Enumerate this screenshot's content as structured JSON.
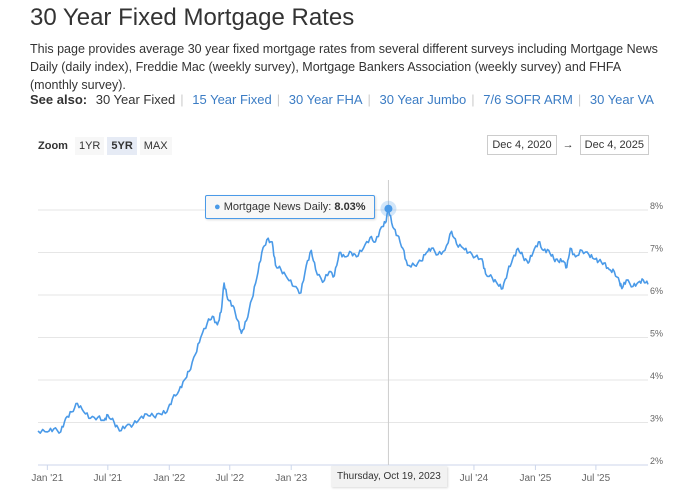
{
  "page": {
    "title": "30 Year Fixed Mortgage Rates",
    "description": "This page provides average 30 year fixed mortgage rates from several different surveys including Mortgage News Daily (daily index), Freddie Mac (weekly survey), Mortgage Bankers Association (weekly survey) and FHFA (monthly survey)."
  },
  "see_also": {
    "label": "See also:",
    "items": [
      "30 Year Fixed",
      "15 Year Fixed",
      "30 Year FHA",
      "30 Year Jumbo",
      "7/6 SOFR ARM",
      "30 Year VA"
    ]
  },
  "zoom": {
    "label": "Zoom",
    "options": [
      "1YR",
      "5YR",
      "MAX"
    ],
    "active": "5YR"
  },
  "range": {
    "from": "Dec 4, 2020",
    "arrow": "→",
    "to": "Dec 4, 2025"
  },
  "tooltip": {
    "series": "Mortgage News Daily",
    "value": "8.03%",
    "date": "Thursday, Oct 19, 2023"
  },
  "chart_data": {
    "type": "line",
    "title": "",
    "xlabel": "",
    "ylabel": "",
    "xlim": [
      "2020-12-04",
      "2025-12-04"
    ],
    "ylim": [
      2,
      8.3
    ],
    "grid": true,
    "color": "#4a9ae8",
    "x_ticks": [
      "Jan '21",
      "Jul '21",
      "Jan '22",
      "Jul '22",
      "Jan '23",
      "Jul '24",
      "Jan '25",
      "Jul '25"
    ],
    "x_tick_dates": [
      "2021-01-01",
      "2021-07-01",
      "2022-01-01",
      "2022-07-01",
      "2023-01-01",
      "2024-07-01",
      "2025-01-01",
      "2025-07-01"
    ],
    "y_ticks": [
      "2%",
      "3%",
      "4%",
      "5%",
      "6%",
      "7%",
      "8%"
    ],
    "y_tick_values": [
      2,
      3,
      4,
      5,
      6,
      7,
      8
    ],
    "series": [
      {
        "name": "Mortgage News Daily",
        "points": [
          [
            "2020-12-04",
            2.8
          ],
          [
            "2021-01-01",
            2.78
          ],
          [
            "2021-01-20",
            2.85
          ],
          [
            "2021-02-10",
            2.78
          ],
          [
            "2021-02-25",
            3.1
          ],
          [
            "2021-03-15",
            3.25
          ],
          [
            "2021-04-01",
            3.45
          ],
          [
            "2021-04-20",
            3.25
          ],
          [
            "2021-05-10",
            3.1
          ],
          [
            "2021-06-01",
            3.12
          ],
          [
            "2021-06-20",
            3.05
          ],
          [
            "2021-07-01",
            3.18
          ],
          [
            "2021-07-20",
            3.0
          ],
          [
            "2021-08-05",
            2.8
          ],
          [
            "2021-08-25",
            2.92
          ],
          [
            "2021-09-15",
            2.95
          ],
          [
            "2021-10-05",
            3.1
          ],
          [
            "2021-10-25",
            3.2
          ],
          [
            "2021-11-15",
            3.15
          ],
          [
            "2021-12-05",
            3.2
          ],
          [
            "2021-12-25",
            3.25
          ],
          [
            "2022-01-10",
            3.55
          ],
          [
            "2022-01-30",
            3.75
          ],
          [
            "2022-02-15",
            4.0
          ],
          [
            "2022-03-01",
            4.2
          ],
          [
            "2022-03-20",
            4.6
          ],
          [
            "2022-04-05",
            5.0
          ],
          [
            "2022-04-25",
            5.35
          ],
          [
            "2022-05-10",
            5.5
          ],
          [
            "2022-05-25",
            5.3
          ],
          [
            "2022-06-05",
            5.6
          ],
          [
            "2022-06-14",
            6.28
          ],
          [
            "2022-06-25",
            5.9
          ],
          [
            "2022-07-10",
            5.75
          ],
          [
            "2022-07-25",
            5.4
          ],
          [
            "2022-08-05",
            5.1
          ],
          [
            "2022-08-20",
            5.4
          ],
          [
            "2022-09-05",
            5.9
          ],
          [
            "2022-09-20",
            6.4
          ],
          [
            "2022-10-05",
            7.0
          ],
          [
            "2022-10-20",
            7.3
          ],
          [
            "2022-11-05",
            7.25
          ],
          [
            "2022-11-15",
            6.7
          ],
          [
            "2022-12-01",
            6.6
          ],
          [
            "2022-12-20",
            6.4
          ],
          [
            "2023-01-10",
            6.2
          ],
          [
            "2023-01-30",
            6.05
          ],
          [
            "2023-02-15",
            6.7
          ],
          [
            "2023-03-02",
            7.05
          ],
          [
            "2023-03-15",
            6.6
          ],
          [
            "2023-04-05",
            6.3
          ],
          [
            "2023-04-25",
            6.55
          ],
          [
            "2023-05-10",
            6.45
          ],
          [
            "2023-05-25",
            7.0
          ],
          [
            "2023-06-10",
            6.9
          ],
          [
            "2023-06-30",
            7.0
          ],
          [
            "2023-07-15",
            6.9
          ],
          [
            "2023-08-05",
            7.1
          ],
          [
            "2023-08-25",
            7.35
          ],
          [
            "2023-09-10",
            7.25
          ],
          [
            "2023-09-28",
            7.6
          ],
          [
            "2023-10-10",
            7.7
          ],
          [
            "2023-10-19",
            8.03
          ],
          [
            "2023-11-01",
            7.6
          ],
          [
            "2023-11-15",
            7.4
          ],
          [
            "2023-12-01",
            7.1
          ],
          [
            "2023-12-15",
            6.7
          ],
          [
            "2024-01-05",
            6.7
          ],
          [
            "2024-01-25",
            6.8
          ],
          [
            "2024-02-10",
            7.0
          ],
          [
            "2024-02-25",
            7.1
          ],
          [
            "2024-03-15",
            6.95
          ],
          [
            "2024-04-05",
            7.05
          ],
          [
            "2024-04-25",
            7.5
          ],
          [
            "2024-05-10",
            7.2
          ],
          [
            "2024-05-30",
            7.1
          ],
          [
            "2024-06-15",
            7.0
          ],
          [
            "2024-07-05",
            6.9
          ],
          [
            "2024-07-25",
            6.85
          ],
          [
            "2024-08-05",
            6.5
          ],
          [
            "2024-08-25",
            6.4
          ],
          [
            "2024-09-10",
            6.25
          ],
          [
            "2024-09-25",
            6.15
          ],
          [
            "2024-10-10",
            6.55
          ],
          [
            "2024-10-25",
            6.85
          ],
          [
            "2024-11-10",
            7.1
          ],
          [
            "2024-11-25",
            6.9
          ],
          [
            "2024-12-10",
            6.75
          ],
          [
            "2024-12-25",
            7.0
          ],
          [
            "2025-01-10",
            7.25
          ],
          [
            "2025-01-25",
            7.05
          ],
          [
            "2025-02-10",
            7.05
          ],
          [
            "2025-02-25",
            6.85
          ],
          [
            "2025-03-10",
            6.8
          ],
          [
            "2025-03-25",
            6.8
          ],
          [
            "2025-04-05",
            6.65
          ],
          [
            "2025-04-15",
            7.1
          ],
          [
            "2025-05-01",
            6.9
          ],
          [
            "2025-05-20",
            7.05
          ],
          [
            "2025-06-10",
            6.95
          ],
          [
            "2025-06-25",
            6.85
          ],
          [
            "2025-07-10",
            6.8
          ],
          [
            "2025-07-25",
            6.75
          ],
          [
            "2025-08-10",
            6.6
          ],
          [
            "2025-08-25",
            6.55
          ],
          [
            "2025-09-10",
            6.3
          ],
          [
            "2025-09-17",
            6.15
          ],
          [
            "2025-09-30",
            6.35
          ],
          [
            "2025-10-20",
            6.2
          ],
          [
            "2025-11-05",
            6.3
          ],
          [
            "2025-11-20",
            6.35
          ],
          [
            "2025-12-04",
            6.25
          ]
        ]
      }
    ]
  }
}
